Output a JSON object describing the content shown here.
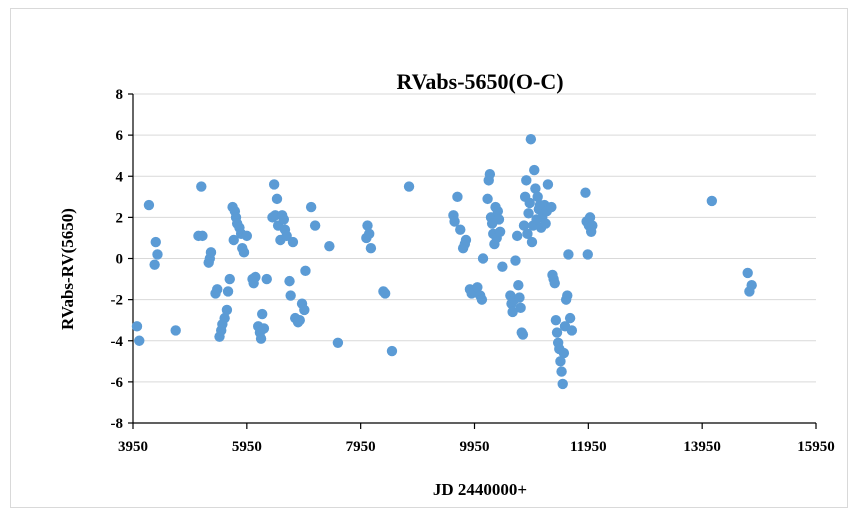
{
  "chart_data": {
    "type": "scatter",
    "title": "RVabs-5650(O-C)",
    "xlabel": "JD 2440000+",
    "ylabel": "RVabs-RV(5650)",
    "xlim": [
      3950,
      15950
    ],
    "ylim": [
      -8,
      8
    ],
    "xticks": [
      3950,
      5950,
      7950,
      9950,
      11950,
      13950,
      15950
    ],
    "yticks": [
      -8,
      -6,
      -4,
      -2,
      0,
      2,
      4,
      6,
      8
    ],
    "grid": "horizontal",
    "marker_color": "#5b9bd5",
    "series": [
      {
        "points": [
          [
            4020,
            -3.3
          ],
          [
            4060,
            -4.0
          ],
          [
            4230,
            2.6
          ],
          [
            4330,
            -0.3
          ],
          [
            4350,
            0.8
          ],
          [
            4380,
            0.2
          ],
          [
            4700,
            -3.5
          ],
          [
            5100,
            1.1
          ],
          [
            5150,
            3.5
          ],
          [
            5170,
            1.1
          ],
          [
            5280,
            -0.2
          ],
          [
            5300,
            0.0
          ],
          [
            5320,
            0.3
          ],
          [
            5400,
            -1.7
          ],
          [
            5430,
            -1.5
          ],
          [
            5470,
            -3.8
          ],
          [
            5500,
            -3.5
          ],
          [
            5520,
            -3.2
          ],
          [
            5560,
            -2.9
          ],
          [
            5600,
            -2.5
          ],
          [
            5620,
            -1.6
          ],
          [
            5650,
            -1.0
          ],
          [
            5700,
            2.5
          ],
          [
            5720,
            0.9
          ],
          [
            5740,
            2.3
          ],
          [
            5760,
            2.0
          ],
          [
            5780,
            1.7
          ],
          [
            5820,
            1.5
          ],
          [
            5850,
            1.2
          ],
          [
            5870,
            0.5
          ],
          [
            5900,
            0.3
          ],
          [
            5950,
            1.1
          ],
          [
            6050,
            -1.0
          ],
          [
            6070,
            -1.2
          ],
          [
            6100,
            -0.9
          ],
          [
            6150,
            -3.3
          ],
          [
            6180,
            -3.6
          ],
          [
            6200,
            -3.9
          ],
          [
            6220,
            -2.7
          ],
          [
            6250,
            -3.4
          ],
          [
            6300,
            -1.0
          ],
          [
            6400,
            2.0
          ],
          [
            6430,
            3.6
          ],
          [
            6450,
            2.1
          ],
          [
            6480,
            2.9
          ],
          [
            6500,
            1.6
          ],
          [
            6540,
            0.9
          ],
          [
            6570,
            2.1
          ],
          [
            6600,
            1.9
          ],
          [
            6620,
            1.4
          ],
          [
            6650,
            1.1
          ],
          [
            6700,
            -1.1
          ],
          [
            6720,
            -1.8
          ],
          [
            6760,
            0.8
          ],
          [
            6800,
            -2.9
          ],
          [
            6850,
            -3.1
          ],
          [
            6880,
            -3.0
          ],
          [
            6920,
            -2.2
          ],
          [
            6960,
            -2.5
          ],
          [
            6980,
            -0.6
          ],
          [
            7080,
            2.5
          ],
          [
            7150,
            1.6
          ],
          [
            7400,
            0.6
          ],
          [
            7550,
            -4.1
          ],
          [
            8050,
            1.0
          ],
          [
            8070,
            1.6
          ],
          [
            8100,
            1.2
          ],
          [
            8130,
            0.5
          ],
          [
            8350,
            -1.6
          ],
          [
            8380,
            -1.7
          ],
          [
            8500,
            -4.5
          ],
          [
            8800,
            3.5
          ],
          [
            9580,
            2.1
          ],
          [
            9600,
            1.8
          ],
          [
            9650,
            3.0
          ],
          [
            9700,
            1.4
          ],
          [
            9750,
            0.5
          ],
          [
            9780,
            0.7
          ],
          [
            9800,
            0.9
          ],
          [
            9870,
            -1.5
          ],
          [
            9900,
            -1.7
          ],
          [
            9950,
            -1.6
          ],
          [
            10000,
            -1.4
          ],
          [
            10050,
            -1.8
          ],
          [
            10080,
            -2.0
          ],
          [
            10100,
            0.0
          ],
          [
            10180,
            2.9
          ],
          [
            10200,
            3.8
          ],
          [
            10220,
            4.1
          ],
          [
            10240,
            2.0
          ],
          [
            10260,
            1.7
          ],
          [
            10280,
            1.2
          ],
          [
            10300,
            0.7
          ],
          [
            10320,
            2.5
          ],
          [
            10340,
            1.0
          ],
          [
            10360,
            2.3
          ],
          [
            10380,
            1.9
          ],
          [
            10400,
            1.3
          ],
          [
            10440,
            -0.4
          ],
          [
            10580,
            -1.8
          ],
          [
            10600,
            -2.2
          ],
          [
            10620,
            -2.6
          ],
          [
            10650,
            -2.0
          ],
          [
            10670,
            -0.1
          ],
          [
            10700,
            1.1
          ],
          [
            10720,
            -1.3
          ],
          [
            10740,
            -1.9
          ],
          [
            10760,
            -2.4
          ],
          [
            10780,
            -3.6
          ],
          [
            10800,
            -3.7
          ],
          [
            10820,
            1.6
          ],
          [
            10840,
            3.0
          ],
          [
            10860,
            3.8
          ],
          [
            10880,
            1.2
          ],
          [
            10900,
            2.2
          ],
          [
            10920,
            2.7
          ],
          [
            10940,
            5.8
          ],
          [
            10960,
            0.8
          ],
          [
            10980,
            1.6
          ],
          [
            11000,
            4.3
          ],
          [
            11020,
            3.4
          ],
          [
            11040,
            1.9
          ],
          [
            11060,
            3.0
          ],
          [
            11080,
            2.4
          ],
          [
            11100,
            2.6
          ],
          [
            11120,
            1.5
          ],
          [
            11140,
            2.0
          ],
          [
            11160,
            2.2
          ],
          [
            11180,
            2.6
          ],
          [
            11200,
            1.7
          ],
          [
            11220,
            2.3
          ],
          [
            11240,
            3.6
          ],
          [
            11300,
            2.5
          ],
          [
            11320,
            -0.8
          ],
          [
            11340,
            -1.0
          ],
          [
            11360,
            -1.2
          ],
          [
            11380,
            -3.0
          ],
          [
            11400,
            -3.6
          ],
          [
            11420,
            -4.1
          ],
          [
            11440,
            -4.4
          ],
          [
            11460,
            -5.0
          ],
          [
            11480,
            -5.5
          ],
          [
            11500,
            -6.1
          ],
          [
            11520,
            -4.6
          ],
          [
            11540,
            -3.3
          ],
          [
            11560,
            -2.0
          ],
          [
            11580,
            -1.8
          ],
          [
            11600,
            0.2
          ],
          [
            11630,
            -2.9
          ],
          [
            11660,
            -3.5
          ],
          [
            11900,
            3.2
          ],
          [
            11920,
            1.8
          ],
          [
            11940,
            0.2
          ],
          [
            11960,
            1.6
          ],
          [
            11980,
            2.0
          ],
          [
            12000,
            1.3
          ],
          [
            12020,
            1.6
          ],
          [
            14120,
            2.8
          ],
          [
            14750,
            -0.7
          ],
          [
            14780,
            -1.6
          ],
          [
            14820,
            -1.3
          ]
        ]
      }
    ]
  }
}
